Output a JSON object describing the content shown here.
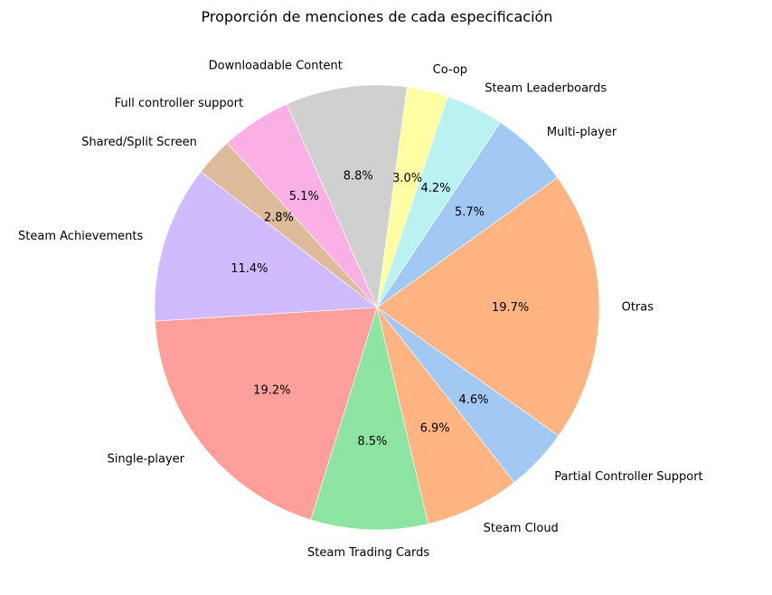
{
  "chart_data": {
    "type": "pie",
    "title": "Proporción de menciones de cada especificación",
    "slices": [
      {
        "label": "Single-player",
        "value": 19.2,
        "pct_label": "19.2%",
        "color": "#ff9f9b"
      },
      {
        "label": "Steam Trading Cards",
        "value": 8.5,
        "pct_label": "8.5%",
        "color": "#8de5a1"
      },
      {
        "label": "Steam Cloud",
        "value": 6.9,
        "pct_label": "6.9%",
        "color": "#ffb482"
      },
      {
        "label": "Partial Controller Support",
        "value": 4.6,
        "pct_label": "4.6%",
        "color": "#a1c9f4"
      },
      {
        "label": "Otras",
        "value": 19.7,
        "pct_label": "19.7%",
        "color": "#ffb482"
      },
      {
        "label": "Multi-player",
        "value": 5.7,
        "pct_label": "5.7%",
        "color": "#a1c9f4"
      },
      {
        "label": "Steam Leaderboards",
        "value": 4.2,
        "pct_label": "4.2%",
        "color": "#b9f2f0"
      },
      {
        "label": "Co-op",
        "value": 3.0,
        "pct_label": "3.0%",
        "color": "#fffea3"
      },
      {
        "label": "Downloadable Content",
        "value": 8.8,
        "pct_label": "8.8%",
        "color": "#d0d0d0"
      },
      {
        "label": "Full controller support",
        "value": 5.1,
        "pct_label": "5.1%",
        "color": "#fab0e4"
      },
      {
        "label": "Shared/Split Screen",
        "value": 2.8,
        "pct_label": "2.8%",
        "color": "#debb9b"
      },
      {
        "label": "Steam Achievements",
        "value": 11.4,
        "pct_label": "11.4%",
        "color": "#d0bbff"
      }
    ]
  }
}
